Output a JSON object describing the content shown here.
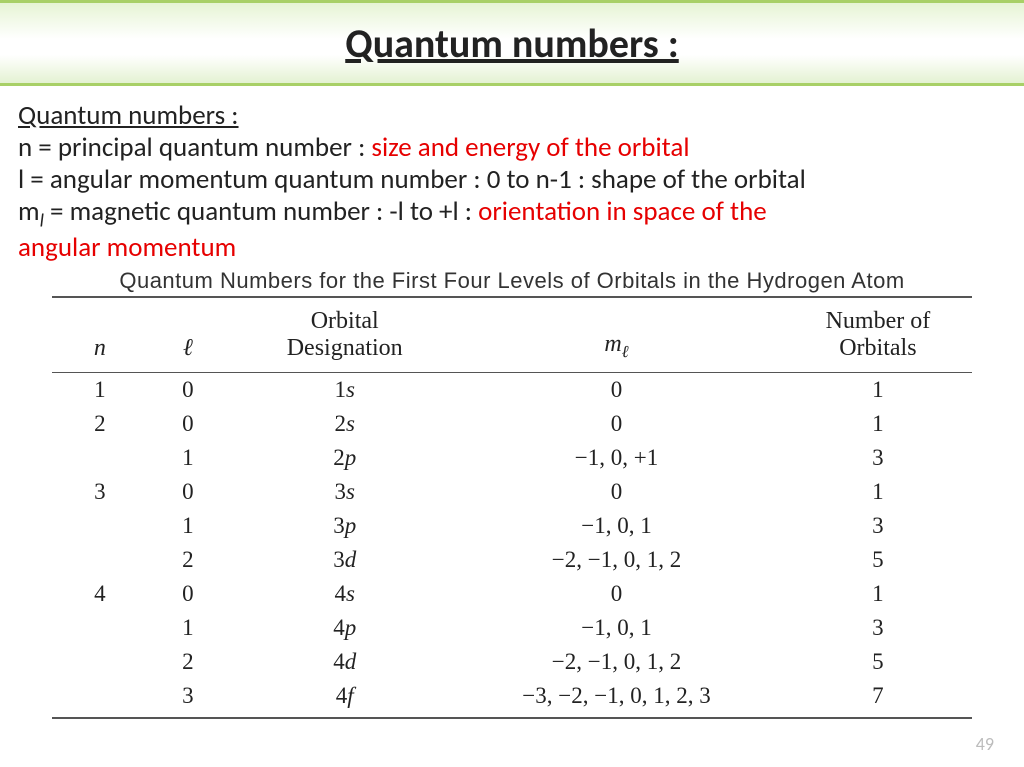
{
  "title": "Quantum numbers :",
  "defs": {
    "heading": "Quantum numbers :",
    "n_a": "n = principal quantum number : ",
    "n_b": "size and energy of the orbital",
    "l_full": "l = angular momentum quantum number : 0 to n-1 : shape of the orbital",
    "ml_a_pre": "m",
    "ml_a_sub": "l",
    "ml_b": " = magnetic quantum number : -l to +l : ",
    "ml_c1": "orientation in space of the",
    "ml_c2": "angular momentum"
  },
  "table": {
    "caption": "Quantum Numbers for the First Four Levels of Orbitals in the Hydrogen Atom",
    "columns": {
      "n": "n",
      "l": "ℓ",
      "des_line1": "Orbital",
      "des_line2": "Designation",
      "ml_m": "m",
      "ml_sub": "ℓ",
      "orb_line1": "Number of",
      "orb_line2": "Orbitals"
    },
    "rows": [
      {
        "n": "1",
        "l": "0",
        "des_num": "1",
        "des_ltr": "s",
        "ml": "0",
        "orb": "1"
      },
      {
        "n": "2",
        "l": "0",
        "des_num": "2",
        "des_ltr": "s",
        "ml": "0",
        "orb": "1"
      },
      {
        "n": "",
        "l": "1",
        "des_num": "2",
        "des_ltr": "p",
        "ml": "−1, 0, +1",
        "orb": "3"
      },
      {
        "n": "3",
        "l": "0",
        "des_num": "3",
        "des_ltr": "s",
        "ml": "0",
        "orb": "1"
      },
      {
        "n": "",
        "l": "1",
        "des_num": "3",
        "des_ltr": "p",
        "ml": "−1, 0, 1",
        "orb": "3"
      },
      {
        "n": "",
        "l": "2",
        "des_num": "3",
        "des_ltr": "d",
        "ml": "−2, −1, 0, 1, 2",
        "orb": "5"
      },
      {
        "n": "4",
        "l": "0",
        "des_num": "4",
        "des_ltr": "s",
        "ml": "0",
        "orb": "1"
      },
      {
        "n": "",
        "l": "1",
        "des_num": "4",
        "des_ltr": "p",
        "ml": "−1, 0, 1",
        "orb": "3"
      },
      {
        "n": "",
        "l": "2",
        "des_num": "4",
        "des_ltr": "d",
        "ml": "−2, −1, 0, 1, 2",
        "orb": "5"
      },
      {
        "n": "",
        "l": "3",
        "des_num": "4",
        "des_ltr": "f",
        "ml": "−3, −2, −1, 0, 1, 2, 3",
        "orb": "7"
      }
    ],
    "col_widths": {
      "n": 80,
      "l": 100,
      "des": 200,
      "ml": 320,
      "orb": 180
    },
    "border_color": "#555555",
    "font_family": "Times New Roman"
  },
  "page_number": "49",
  "colors": {
    "highlight_red": "#e60000",
    "band_border": "#a8d067",
    "band_grad_top": "#e6f4d4",
    "band_grad_bot": "#e4f2d2",
    "page_no": "#bcbcbc"
  }
}
